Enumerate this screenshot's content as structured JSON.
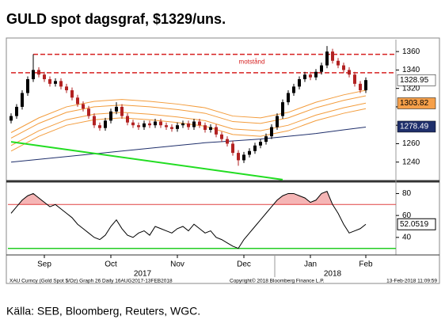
{
  "header": {
    "title": "GULD spot dagsgraf, $1329/uns."
  },
  "chart_data": [
    {
      "type": "candlestick",
      "categories": [
        null,
        null,
        null,
        null,
        null,
        null,
        "Sep",
        null,
        null,
        null,
        null,
        null,
        null,
        null,
        null,
        null,
        null,
        null,
        "Oct",
        null,
        null,
        null,
        null,
        null,
        null,
        null,
        null,
        null,
        null,
        null,
        "Nov",
        null,
        null,
        null,
        null,
        null,
        null,
        null,
        null,
        null,
        null,
        null,
        "Dec",
        null,
        null,
        null,
        null,
        null,
        null,
        null,
        null,
        null,
        null,
        null,
        "Jan",
        null,
        null,
        null,
        null,
        null,
        null,
        null,
        null,
        null,
        "Feb"
      ],
      "year_labels": [
        "2017",
        "2018"
      ],
      "open": [
        1285,
        1290,
        1300,
        1315,
        1330,
        1340,
        1335,
        1330,
        1325,
        1328,
        1322,
        1318,
        1310,
        1303,
        1298,
        1290,
        1280,
        1277,
        1285,
        1295,
        1300,
        1290,
        1283,
        1280,
        1278,
        1282,
        1280,
        1284,
        1280,
        1278,
        1276,
        1280,
        1282,
        1278,
        1284,
        1280,
        1275,
        1278,
        1270,
        1265,
        1260,
        1250,
        1242,
        1248,
        1252,
        1258,
        1262,
        1268,
        1278,
        1290,
        1305,
        1315,
        1322,
        1330,
        1335,
        1332,
        1338,
        1345,
        1360,
        1350,
        1345,
        1340,
        1335,
        1325,
        1318
      ],
      "high": [
        1293,
        1303,
        1318,
        1333,
        1357,
        1343,
        1338,
        1333,
        1331,
        1331,
        1325,
        1321,
        1313,
        1306,
        1301,
        1293,
        1283,
        1288,
        1298,
        1305,
        1303,
        1293,
        1286,
        1283,
        1285,
        1285,
        1287,
        1287,
        1283,
        1281,
        1283,
        1285,
        1285,
        1287,
        1287,
        1283,
        1281,
        1281,
        1273,
        1268,
        1263,
        1253,
        1251,
        1255,
        1261,
        1265,
        1271,
        1281,
        1293,
        1308,
        1318,
        1325,
        1333,
        1338,
        1338,
        1341,
        1348,
        1366,
        1363,
        1353,
        1348,
        1343,
        1338,
        1328,
        1332
      ],
      "low": [
        1282,
        1287,
        1297,
        1312,
        1327,
        1332,
        1327,
        1322,
        1322,
        1319,
        1315,
        1307,
        1300,
        1295,
        1287,
        1277,
        1274,
        1274,
        1282,
        1292,
        1287,
        1280,
        1277,
        1275,
        1275,
        1277,
        1277,
        1277,
        1275,
        1273,
        1273,
        1277,
        1275,
        1275,
        1277,
        1272,
        1272,
        1267,
        1262,
        1257,
        1247,
        1236,
        1239,
        1245,
        1249,
        1255,
        1259,
        1265,
        1275,
        1287,
        1302,
        1312,
        1319,
        1327,
        1329,
        1329,
        1335,
        1342,
        1347,
        1342,
        1337,
        1332,
        1322,
        1315,
        1315
      ],
      "close": [
        1290,
        1300,
        1315,
        1330,
        1340,
        1335,
        1330,
        1325,
        1328,
        1322,
        1318,
        1310,
        1303,
        1298,
        1290,
        1280,
        1277,
        1285,
        1295,
        1300,
        1290,
        1283,
        1280,
        1278,
        1282,
        1280,
        1284,
        1280,
        1278,
        1276,
        1280,
        1282,
        1278,
        1284,
        1280,
        1275,
        1278,
        1270,
        1265,
        1260,
        1250,
        1242,
        1248,
        1252,
        1258,
        1262,
        1268,
        1278,
        1290,
        1305,
        1315,
        1322,
        1330,
        1335,
        1332,
        1338,
        1345,
        1360,
        1350,
        1345,
        1340,
        1335,
        1325,
        1318,
        1329
      ],
      "up_color": "#000000",
      "down_color": "#b22222",
      "overlay_x": [
        0,
        5,
        10,
        15,
        20,
        25,
        30,
        35,
        40,
        45,
        50,
        55,
        60,
        64
      ],
      "overlays": [
        {
          "color": "#f39c3c",
          "values": [
            1272,
            1288,
            1300,
            1306,
            1308,
            1306,
            1303,
            1299,
            1290,
            1288,
            1294,
            1305,
            1313,
            1318
          ]
        },
        {
          "color": "#f39c3c",
          "values": [
            1266,
            1282,
            1294,
            1300,
            1302,
            1300,
            1297,
            1293,
            1284,
            1282,
            1288,
            1299,
            1307,
            1312
          ]
        },
        {
          "color": "#f39c3c",
          "values": [
            1258,
            1274,
            1286,
            1292,
            1294,
            1292,
            1289,
            1285,
            1276,
            1274,
            1280,
            1291,
            1299,
            1304
          ]
        },
        {
          "color": "#f39c3c",
          "values": [
            1252,
            1268,
            1280,
            1286,
            1288,
            1286,
            1283,
            1279,
            1270,
            1268,
            1274,
            1285,
            1293,
            1298
          ]
        },
        {
          "color": "#1f2f6b",
          "values": [
            1240,
            1243,
            1246,
            1249,
            1252,
            1255,
            1258,
            1261,
            1263,
            1265,
            1268,
            1271,
            1275,
            1278
          ]
        }
      ],
      "trendline": {
        "color": "#22dd22",
        "x": [
          0,
          49
        ],
        "values": [
          1262,
          1221
        ]
      },
      "resistance": {
        "color": "#d62020",
        "levels": [
          1357,
          1337
        ],
        "start": [
          4,
          0
        ],
        "annotation": "motstånd"
      },
      "tags": [
        {
          "value": 1328.95,
          "label": "1328.95",
          "bg": "#ffffff",
          "fg": "#000000"
        },
        {
          "value": 1303.82,
          "label": "1303.82",
          "bg": "#f6a04a",
          "fg": "#000000"
        },
        {
          "value": 1278.49,
          "label": "1278.49",
          "bg": "#1f2f6b",
          "fg": "#ffffff"
        }
      ],
      "ylim": [
        1220,
        1373
      ],
      "yticks": [
        1240,
        1260,
        1280,
        1300,
        1320,
        1340,
        1360
      ]
    },
    {
      "type": "line",
      "values": [
        62,
        68,
        74,
        78,
        80,
        76,
        72,
        68,
        70,
        66,
        62,
        58,
        52,
        48,
        44,
        40,
        38,
        42,
        50,
        56,
        48,
        42,
        40,
        44,
        46,
        42,
        50,
        48,
        46,
        44,
        48,
        50,
        46,
        52,
        48,
        44,
        46,
        40,
        38,
        35,
        32,
        30,
        38,
        44,
        50,
        56,
        62,
        68,
        74,
        78,
        80,
        80,
        78,
        76,
        72,
        74,
        80,
        82,
        70,
        62,
        52,
        44,
        46,
        48,
        52
      ],
      "color": "#000000",
      "upper": 70,
      "lower": 30,
      "upper_color": "#e04040",
      "lower_color": "#22cc22",
      "fill_color": "#f5b5b5",
      "last_label": "52.0519",
      "ylim": [
        24,
        89
      ],
      "yticks": [
        40,
        60,
        80
      ]
    }
  ],
  "footer": {
    "left": "XAU Curncy (Gold Spot  $/Oz) Graph 26  Daily 16AUG2017-13FEB2018",
    "center": "Copyright© 2018 Bloomberg Finance L.P.",
    "right": "13-Feb-2018 11:09:59"
  },
  "source": "Källa: SEB, Bloomberg, Reuters, WGC."
}
